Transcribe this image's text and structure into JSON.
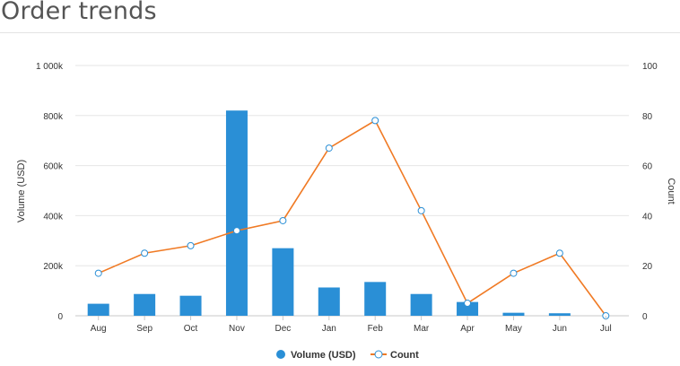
{
  "header": {
    "title": "Order trends"
  },
  "chart_data": {
    "type": "bar",
    "categories": [
      "Aug",
      "Sep",
      "Oct",
      "Nov",
      "Dec",
      "Jan",
      "Feb",
      "Mar",
      "Apr",
      "May",
      "Jun",
      "Jul"
    ],
    "series": [
      {
        "name": "Volume (USD)",
        "type": "bar",
        "axis": "left",
        "color": "#2a8fd6",
        "values": [
          48000,
          87000,
          80000,
          820000,
          270000,
          113000,
          135000,
          87000,
          55000,
          12000,
          10000,
          0
        ]
      },
      {
        "name": "Count",
        "type": "line",
        "axis": "right",
        "color": "#f07a24",
        "values": [
          17,
          25,
          28,
          34,
          38,
          67,
          78,
          42,
          5,
          17,
          25,
          0
        ]
      }
    ],
    "y_left": {
      "label": "Volume (USD)",
      "ylim": [
        0,
        1000000
      ],
      "ticks": [
        0,
        200000,
        400000,
        600000,
        800000,
        1000000
      ],
      "tick_labels": [
        "0",
        "200k",
        "400k",
        "600k",
        "800k",
        "1 000k"
      ]
    },
    "y_right": {
      "label": "Count",
      "ylim": [
        0,
        100
      ],
      "ticks": [
        0,
        20,
        40,
        60,
        80,
        100
      ],
      "tick_labels": [
        "0",
        "20",
        "40",
        "60",
        "80",
        "100"
      ]
    },
    "grid": true,
    "legend_position": "bottom-center"
  }
}
